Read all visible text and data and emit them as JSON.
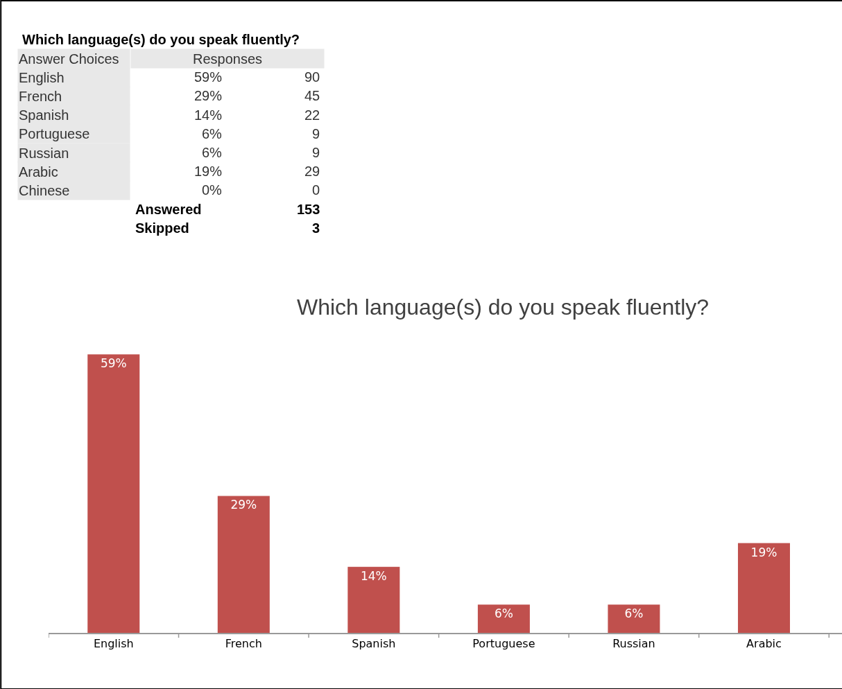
{
  "chart_data": [
    {
      "type": "other",
      "title": "Which language(s) do you speak fluently?",
      "categories": [
        "English",
        "French",
        "Spanish",
        "Portuguese",
        "Russian",
        "Arabic",
        "Chinese"
      ],
      "series": [
        {
          "values": [
            59,
            29,
            14,
            6,
            6,
            19,
            0
          ],
          "value_labels": [
            "59%",
            "29%",
            "14%",
            "6%",
            "6%",
            "19%",
            "0%"
          ]
        },
        {
          "values": [
            90,
            45,
            22,
            9,
            9,
            29,
            0
          ]
        }
      ],
      "data_labels": true,
      "annotations": [
        "Answer Choices",
        "Responses",
        "Answered",
        "153",
        "Skipped",
        "3"
      ]
    },
    {
      "type": "bar",
      "title": "Which language(s) do you speak fluently?",
      "categories": [
        "English",
        "French",
        "Spanish",
        "Portuguese",
        "Russian",
        "Arabic"
      ],
      "values": [
        59,
        29,
        14,
        6,
        6,
        19
      ],
      "value_labels": [
        "59%",
        "29%",
        "14%",
        "6%",
        "6%",
        "19%"
      ],
      "color": "#c0504d",
      "grid": false,
      "legend": false
    }
  ]
}
